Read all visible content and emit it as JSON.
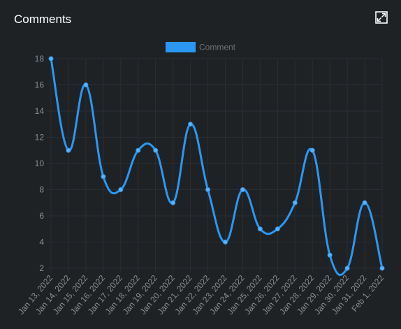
{
  "panel": {
    "title": "Comments",
    "expand_icon": "expand-icon"
  },
  "colors": {
    "background": "#1f2225",
    "series": "#2b97f3",
    "grid": "#2a2e32",
    "tick_text": "#8a8d90",
    "legend_text": "#6d7175"
  },
  "chart_data": {
    "type": "line",
    "smooth": true,
    "categories": [
      "Jan 13, 2022",
      "Jan 14, 2022",
      "Jan 15, 2022",
      "Jan 16, 2022",
      "Jan 17, 2022",
      "Jan 18, 2022",
      "Jan 19, 2022",
      "Jan 20, 2022",
      "Jan 21, 2022",
      "Jan 22, 2022",
      "Jan 23, 2022",
      "Jan 24, 2022",
      "Jan 25, 2022",
      "Jan 26, 2022",
      "Jan 27, 2022",
      "Jan 28, 2022",
      "Jan 29, 2022",
      "Jan 30, 2022",
      "Jan 31, 2022",
      "Feb 1, 2022"
    ],
    "series": [
      {
        "name": "Comment",
        "values": [
          18,
          11,
          16,
          9,
          8,
          11,
          11,
          7,
          13,
          8,
          4,
          8,
          5,
          5,
          7,
          11,
          3,
          2,
          7,
          2
        ]
      }
    ],
    "y_ticks": [
      2,
      4,
      6,
      8,
      10,
      12,
      14,
      16,
      18
    ],
    "ylim": [
      2,
      18
    ],
    "grid": true,
    "legend_position": "top-center",
    "title": "",
    "xlabel": "",
    "ylabel": ""
  }
}
